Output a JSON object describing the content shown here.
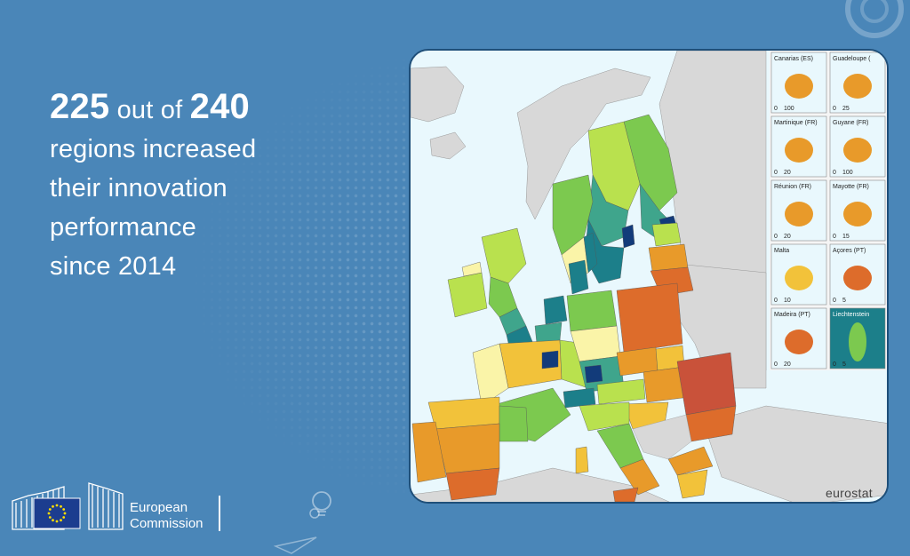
{
  "headline": {
    "number_a": "225",
    "text_a": " out of ",
    "number_b": "240",
    "line2": "regions increased",
    "line3": "their innovation",
    "line4": "performance",
    "line5": "since 2014"
  },
  "map": {
    "source_label": "eurostat",
    "insets": [
      {
        "label": "Canarias (ES)",
        "scale_0": "0",
        "scale_max": "100"
      },
      {
        "label": "Guadeloupe (",
        "scale_0": "0",
        "scale_max": "25"
      },
      {
        "label": "Martinique (FR)",
        "scale_0": "0",
        "scale_max": "20"
      },
      {
        "label": "Guyane (FR)",
        "scale_0": "0",
        "scale_max": "100"
      },
      {
        "label": "Réunion (FR)",
        "scale_0": "0",
        "scale_max": "20"
      },
      {
        "label": "Mayotte (FR)",
        "scale_0": "0",
        "scale_max": "15"
      },
      {
        "label": "Malta",
        "scale_0": "0",
        "scale_max": "10"
      },
      {
        "label": "Açores (PT)",
        "scale_0": "0",
        "scale_max": "5"
      },
      {
        "label": "Madeira (PT)",
        "scale_0": "0",
        "scale_max": "20"
      },
      {
        "label": "Liechtenstein",
        "scale_0": "0",
        "scale_max": "5"
      }
    ],
    "colors": {
      "sea": "#e9f8fd",
      "non_eu_land": "#d8d8d8",
      "dark_red": "#c9523a",
      "orange_red": "#dd6c2b",
      "orange": "#e89a2a",
      "yellow_orange": "#f2c23a",
      "pale_yellow": "#faf4a8",
      "light_green": "#b9e14e",
      "green": "#7cc94f",
      "teal": "#3fa58c",
      "dark_teal": "#1c7f8a",
      "navy": "#123b7a"
    }
  },
  "footer": {
    "org_line1": "European",
    "org_line2": "Commission"
  }
}
